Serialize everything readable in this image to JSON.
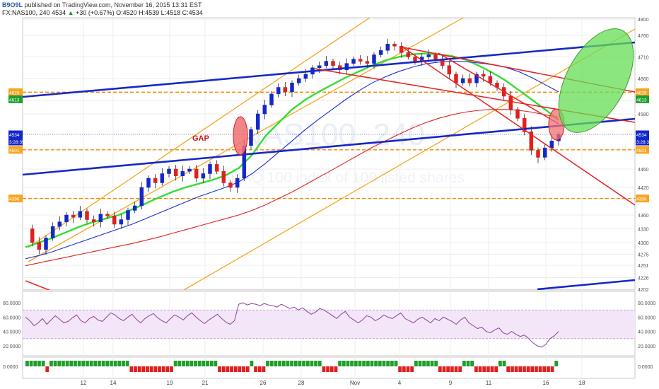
{
  "header": {
    "author": "B9O9L",
    "published": "published on TradingView.com, November 16, 2015 13:31 EST",
    "symbol": "FX:NAS100, 240",
    "last": "4534",
    "change_arrow": "▲",
    "change": "+30 (+0.67%)",
    "ohlc": "O:4520 H:4539 L:4518 C:4534"
  },
  "colors": {
    "up": "#1e9e2a",
    "down": "#e02020",
    "blue": "#1428c8",
    "orange": "#f5a623",
    "red": "#e52222",
    "ma_green": "#33dd33",
    "ma_blue": "#1a2fd0",
    "ma_red": "#dd2222",
    "rsi": "#8e3f9a",
    "rsi_band": "#f3e6f8",
    "orange_hline": "#f08a00"
  },
  "chart_data": [
    {
      "type": "candlestick",
      "title": "",
      "watermark": "NAS100, 240",
      "watermark_sub": "NASDAQ 100 index of 100 listed shares",
      "x_ticks": [
        "12",
        "14",
        "19",
        "21",
        "26",
        "28",
        "Nov",
        "4",
        "9",
        "11",
        "16",
        "18"
      ],
      "y_ticks": [
        4800,
        4760,
        4710,
        4660,
        4610,
        4580,
        4534,
        4501,
        4460,
        4420,
        4396,
        4360,
        4330,
        4300,
        4275,
        4251,
        4226,
        4202
      ],
      "price_labels": [
        {
          "value": 4629,
          "label": "4629",
          "color": "#f5a623"
        },
        {
          "value": 4613,
          "label": "4613",
          "color": "#1e9e2a"
        },
        {
          "value": 4534,
          "label": "4534",
          "color": "#1428c8"
        },
        {
          "value": 4534,
          "label": "3:28:35",
          "color": "#1428c8"
        },
        {
          "value": 4501,
          "label": "4501",
          "color": "#f5a623"
        },
        {
          "value": 4396,
          "label": "4396",
          "color": "#f5a623"
        }
      ],
      "horizontal_levels": [
        4629,
        4501,
        4396
      ],
      "annotation": "GAP",
      "close_path": [
        4330,
        4300,
        4285,
        4310,
        4335,
        4345,
        4360,
        4355,
        4368,
        4350,
        4345,
        4362,
        4358,
        4340,
        4350,
        4370,
        4380,
        4420,
        4440,
        4430,
        4450,
        4460,
        4445,
        4455,
        4460,
        4440,
        4450,
        4470,
        4455,
        4430,
        4420,
        4440,
        4510,
        4545,
        4580,
        4600,
        4625,
        4640,
        4630,
        4650,
        4660,
        4670,
        4685,
        4690,
        4700,
        4690,
        4680,
        4695,
        4705,
        4700,
        4695,
        4715,
        4725,
        4740,
        4735,
        4720,
        4710,
        4700,
        4710,
        4715,
        4705,
        4690,
        4670,
        4650,
        4660,
        4650,
        4670,
        4665,
        4650,
        4640,
        4620,
        4590,
        4570,
        4540,
        4500,
        4485,
        4505,
        4520,
        4534
      ],
      "moving_averages": [
        {
          "name": "",
          "color": "#33dd33",
          "values": [
            4290,
            4300,
            4310,
            4322,
            4334,
            4344,
            4352,
            4360,
            4372,
            4385,
            4398,
            4410,
            4420,
            4428,
            4436,
            4446,
            4462,
            4490,
            4530,
            4560,
            4590,
            4612,
            4630,
            4646,
            4662,
            4676,
            4690,
            4702,
            4710,
            4716,
            4718,
            4716,
            4712,
            4704,
            4690,
            4674,
            4656,
            4634,
            4612,
            4590,
            4566
          ]
        },
        {
          "name": "",
          "color": "#1a2fd0",
          "values": [
            4265,
            4272,
            4280,
            4290,
            4300,
            4310,
            4320,
            4330,
            4340,
            4352,
            4364,
            4376,
            4388,
            4400,
            4410,
            4420,
            4432,
            4450,
            4472,
            4496,
            4520,
            4545,
            4568,
            4590,
            4612,
            4632,
            4650,
            4664,
            4676,
            4686,
            4694,
            4698,
            4700,
            4699,
            4696,
            4692,
            4686,
            4676,
            4662,
            4646,
            4630
          ]
        },
        {
          "name": "",
          "color": "#dd2222",
          "values": [
            4250,
            4256,
            4262,
            4268,
            4274,
            4280,
            4286,
            4292,
            4298,
            4305,
            4312,
            4320,
            4328,
            4336,
            4344,
            4352,
            4360,
            4370,
            4382,
            4396,
            4410,
            4426,
            4442,
            4458,
            4474,
            4490,
            4506,
            4520,
            4534,
            4548,
            4560,
            4570,
            4578,
            4584,
            4588,
            4590,
            4590,
            4588,
            4584,
            4578,
            4572
          ]
        }
      ]
    },
    {
      "type": "line",
      "title": "",
      "y_ticks": [
        80,
        60,
        40,
        20
      ],
      "y_tick_labels": [
        "80.0000",
        "60.0000",
        "40.0000",
        "20.0000"
      ],
      "band": [
        30,
        70
      ],
      "series": [
        {
          "name": "",
          "values": [
            60,
            55,
            48,
            52,
            58,
            50,
            56,
            62,
            57,
            52,
            54,
            59,
            63,
            55,
            52,
            58,
            61,
            56,
            54,
            60,
            66,
            63,
            58,
            55,
            60,
            64,
            57,
            52,
            58,
            62,
            65,
            59,
            55,
            52,
            58,
            63,
            60,
            56,
            62,
            66,
            60,
            55,
            51,
            56,
            60,
            64,
            58,
            53,
            50,
            55,
            78,
            80,
            77,
            79,
            78,
            76,
            79,
            77,
            76,
            74,
            78,
            75,
            72,
            74,
            70,
            73,
            68,
            64,
            67,
            72,
            70,
            66,
            62,
            58,
            64,
            68,
            60,
            56,
            52,
            56,
            62,
            60,
            55,
            58,
            63,
            60,
            58,
            62,
            66,
            58,
            55,
            52,
            57,
            60,
            56,
            52,
            58,
            55,
            60,
            57,
            54,
            50,
            56,
            60,
            52,
            48,
            44,
            46,
            40,
            38,
            42,
            45,
            38,
            36,
            40,
            36,
            33,
            35,
            30,
            24,
            20,
            18,
            22,
            30,
            34,
            40
          ]
        }
      ]
    },
    {
      "type": "bar",
      "title": "",
      "y_ticks": [
        0
      ],
      "y_tick_labels": [
        "0.0000"
      ],
      "values": [
        1,
        1,
        1,
        1,
        1,
        -1,
        1,
        1,
        1,
        1,
        1,
        1,
        1,
        1,
        1,
        1,
        1,
        1,
        1,
        1,
        1,
        1,
        1,
        1,
        1,
        1,
        -1,
        -1,
        -1,
        -1,
        -1,
        -1,
        -1,
        -1,
        -1,
        -1,
        -1,
        1,
        1,
        1,
        1,
        1,
        1,
        1,
        1,
        1,
        1,
        1,
        -1,
        -1,
        -1,
        -1,
        -1,
        -1,
        -1,
        -1,
        1,
        -1,
        -1,
        -1,
        1,
        1,
        1,
        1,
        1,
        1,
        1,
        1,
        1,
        1,
        1,
        1,
        1,
        1,
        -1,
        -1,
        -1,
        -1,
        1,
        1,
        1,
        1,
        1,
        1,
        1,
        1,
        1,
        1,
        1,
        1,
        1,
        1,
        1,
        -1,
        -1,
        -1,
        -1,
        1,
        1,
        1,
        1,
        1,
        1,
        -1,
        -1,
        -1,
        -1,
        -1,
        -1,
        1,
        1,
        1,
        -1,
        -1,
        -1,
        -1,
        -1,
        -1,
        1,
        1,
        -1,
        -1,
        -1,
        -1,
        -1,
        -1,
        -1,
        -1,
        -1,
        -1,
        -1,
        -1,
        1
      ]
    }
  ]
}
